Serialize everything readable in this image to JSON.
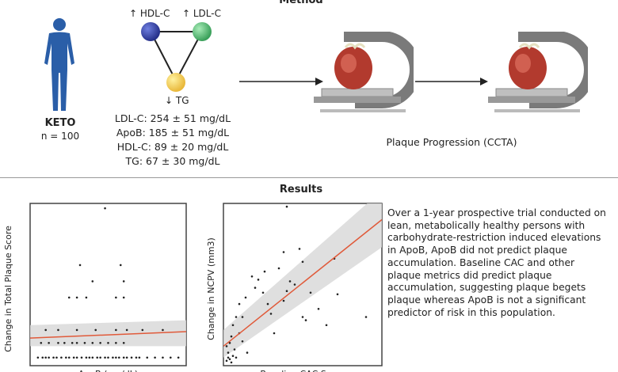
{
  "method": {
    "title": "Method",
    "cohort": {
      "label": "KETO",
      "n": "n = 100",
      "icon": "person-icon"
    },
    "triangle": {
      "nodes": [
        {
          "label": "↑ HDL-C",
          "color": "#3a4bb0"
        },
        {
          "label": "↑ LDL-C",
          "color": "#5cc07a"
        },
        {
          "label": "↓ TG",
          "color": "#f4d05a"
        }
      ]
    },
    "labs": [
      "LDL-C: 254 ± 51 mg/dL",
      "ApoB: 185 ± 51 mg/dL",
      "HDL-C: 89 ± 20 mg/dL",
      "TG: 67 ± 30 mg/dL"
    ],
    "scan_caption": "Plaque Progression (CCTA)",
    "icons": [
      "ct-scanner-heart-icon",
      "ct-scanner-heart-icon",
      "arrow-icon"
    ]
  },
  "results": {
    "title": "Results",
    "summary": "Over a 1-year prospective trial conducted on lean, metabolically healthy persons with carbohydrate-restriction induced elevations in ApoB, ApoB did not predict plaque accumulation. Baseline CAC and other plaque metrics did predict plaque accumulation, suggesting plaque begets plaque whereas ApoB is not a significant predictor of risk in this population."
  },
  "chart_data": [
    {
      "type": "scatter",
      "ylabel": "Change in Total Plaque Score",
      "xlabel": "ApoB (mg/dL)",
      "points": [
        [
          0.05,
          0.05
        ],
        [
          0.08,
          0.05
        ],
        [
          0.1,
          0.05
        ],
        [
          0.12,
          0.05
        ],
        [
          0.15,
          0.05
        ],
        [
          0.17,
          0.05
        ],
        [
          0.2,
          0.05
        ],
        [
          0.23,
          0.05
        ],
        [
          0.25,
          0.05
        ],
        [
          0.28,
          0.05
        ],
        [
          0.3,
          0.05
        ],
        [
          0.33,
          0.05
        ],
        [
          0.36,
          0.05
        ],
        [
          0.38,
          0.05
        ],
        [
          0.4,
          0.05
        ],
        [
          0.43,
          0.05
        ],
        [
          0.45,
          0.05
        ],
        [
          0.48,
          0.05
        ],
        [
          0.5,
          0.05
        ],
        [
          0.53,
          0.05
        ],
        [
          0.55,
          0.05
        ],
        [
          0.57,
          0.05
        ],
        [
          0.6,
          0.05
        ],
        [
          0.62,
          0.05
        ],
        [
          0.65,
          0.05
        ],
        [
          0.68,
          0.05
        ],
        [
          0.7,
          0.05
        ],
        [
          0.75,
          0.05
        ],
        [
          0.8,
          0.05
        ],
        [
          0.85,
          0.05
        ],
        [
          0.9,
          0.05
        ],
        [
          0.95,
          0.05
        ],
        [
          0.07,
          0.14
        ],
        [
          0.12,
          0.14
        ],
        [
          0.18,
          0.14
        ],
        [
          0.22,
          0.14
        ],
        [
          0.27,
          0.14
        ],
        [
          0.3,
          0.14
        ],
        [
          0.35,
          0.14
        ],
        [
          0.4,
          0.14
        ],
        [
          0.45,
          0.14
        ],
        [
          0.5,
          0.14
        ],
        [
          0.55,
          0.14
        ],
        [
          0.6,
          0.14
        ],
        [
          0.1,
          0.22
        ],
        [
          0.18,
          0.22
        ],
        [
          0.3,
          0.22
        ],
        [
          0.42,
          0.22
        ],
        [
          0.55,
          0.22
        ],
        [
          0.62,
          0.22
        ],
        [
          0.72,
          0.22
        ],
        [
          0.85,
          0.22
        ],
        [
          0.25,
          0.42
        ],
        [
          0.3,
          0.42
        ],
        [
          0.36,
          0.42
        ],
        [
          0.55,
          0.42
        ],
        [
          0.6,
          0.42
        ],
        [
          0.4,
          0.52
        ],
        [
          0.6,
          0.52
        ],
        [
          0.32,
          0.62
        ],
        [
          0.58,
          0.62
        ],
        [
          0.48,
          0.97
        ]
      ],
      "fit": {
        "y_start": 0.17,
        "y_end": 0.21
      },
      "ci": {
        "top_start": 0.25,
        "top_end": 0.28,
        "bottom_start": 0.12,
        "bottom_end": 0.12
      },
      "fit_color": "#e05a3a",
      "ci_color": "#d9d9d9"
    },
    {
      "type": "scatter",
      "ylabel": "Change in NCPV (mm3)",
      "xlabel": "Baseline CAC Score",
      "points": [
        [
          0.02,
          0.03
        ],
        [
          0.03,
          0.05
        ],
        [
          0.04,
          0.04
        ],
        [
          0.05,
          0.02
        ],
        [
          0.03,
          0.08
        ],
        [
          0.06,
          0.06
        ],
        [
          0.02,
          0.12
        ],
        [
          0.04,
          0.14
        ],
        [
          0.07,
          0.1
        ],
        [
          0.08,
          0.05
        ],
        [
          0.05,
          0.18
        ],
        [
          0.1,
          0.2
        ],
        [
          0.12,
          0.15
        ],
        [
          0.15,
          0.08
        ],
        [
          0.12,
          0.3
        ],
        [
          0.1,
          0.38
        ],
        [
          0.14,
          0.42
        ],
        [
          0.2,
          0.48
        ],
        [
          0.22,
          0.53
        ],
        [
          0.25,
          0.45
        ],
        [
          0.28,
          0.38
        ],
        [
          0.3,
          0.32
        ],
        [
          0.32,
          0.2
        ],
        [
          0.35,
          0.6
        ],
        [
          0.38,
          0.4
        ],
        [
          0.4,
          0.46
        ],
        [
          0.45,
          0.5
        ],
        [
          0.48,
          0.72
        ],
        [
          0.5,
          0.3
        ],
        [
          0.52,
          0.28
        ],
        [
          0.55,
          0.45
        ],
        [
          0.6,
          0.35
        ],
        [
          0.65,
          0.25
        ],
        [
          0.7,
          0.66
        ],
        [
          0.4,
          0.98
        ],
        [
          0.06,
          0.25
        ],
        [
          0.08,
          0.3
        ],
        [
          0.18,
          0.55
        ],
        [
          0.26,
          0.58
        ],
        [
          0.72,
          0.44
        ],
        [
          0.9,
          0.3
        ],
        [
          0.5,
          0.64
        ],
        [
          0.38,
          0.7
        ],
        [
          0.42,
          0.52
        ]
      ],
      "fit": {
        "y_start": 0.12,
        "y_end": 0.9
      },
      "ci": {
        "top_start": 0.22,
        "top_end": 1.08,
        "bottom_start": 0.05,
        "bottom_end": 0.73
      },
      "fit_color": "#e05a3a",
      "ci_color": "#d9d9d9"
    }
  ]
}
